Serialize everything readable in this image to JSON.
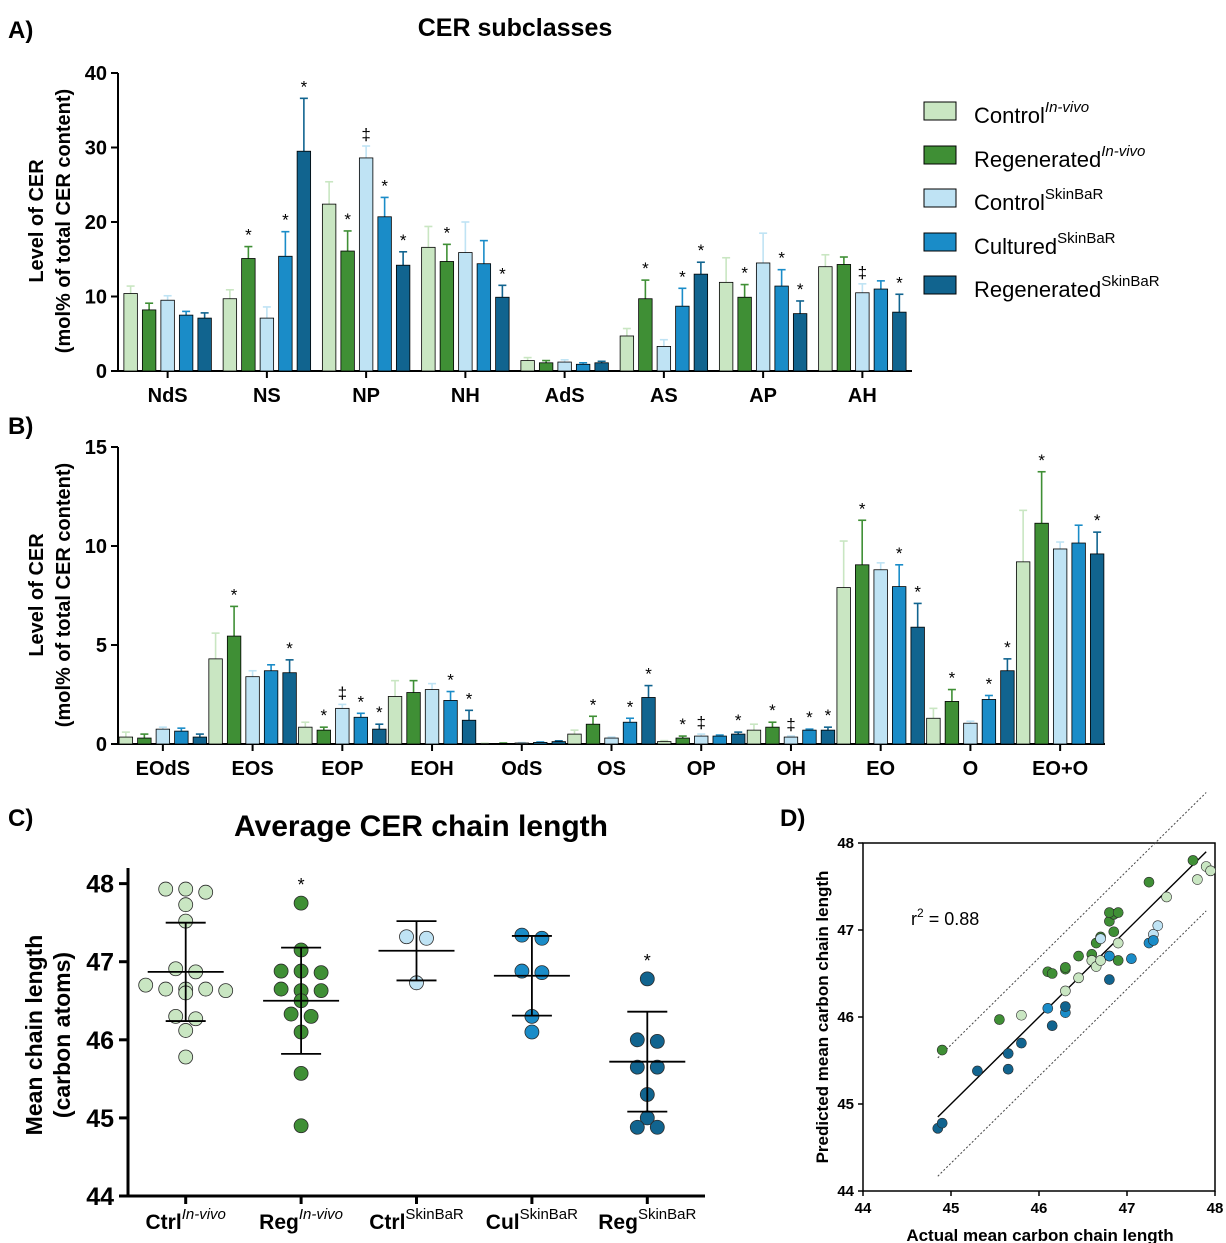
{
  "colors": {
    "control_invivo": "#c9e6c2",
    "regenerated_invivo": "#3f8f35",
    "control_skinbar": "#bfe3f4",
    "cultured_skinbar": "#1a8cc8",
    "regenerated_skinbar": "#11648f",
    "axis": "#000000"
  },
  "legend": [
    {
      "base": "Control",
      "sup": "In-vivo",
      "sup_italic": true,
      "color_key": "control_invivo"
    },
    {
      "base": "Regenerated",
      "sup": "In-vivo",
      "sup_italic": true,
      "color_key": "regenerated_invivo"
    },
    {
      "base": "Control",
      "sup": "SkinBaR",
      "sup_italic": false,
      "color_key": "control_skinbar"
    },
    {
      "base": "Cultured",
      "sup": "SkinBaR",
      "sup_italic": false,
      "color_key": "cultured_skinbar"
    },
    {
      "base": "Regenerated",
      "sup": "SkinBaR",
      "sup_italic": false,
      "color_key": "regenerated_skinbar"
    }
  ],
  "chart_data": [
    {
      "panel": "A)",
      "type": "bar",
      "title": "CER subclasses",
      "ylabel_line1": "Level of CER",
      "ylabel_line2": "(mol% of total CER content)",
      "ylim": [
        0,
        40
      ],
      "yticks": [
        0,
        10,
        20,
        30,
        40
      ],
      "categories": [
        "NdS",
        "NS",
        "NP",
        "NH",
        "AdS",
        "AS",
        "AP",
        "AH"
      ],
      "series": [
        {
          "color_key": "control_invivo",
          "values": [
            10.4,
            9.7,
            22.4,
            16.6,
            1.4,
            4.7,
            11.9,
            14.0
          ],
          "errors": [
            1.0,
            1.2,
            3.0,
            2.8,
            0.4,
            1.0,
            3.3,
            1.6
          ],
          "marks": [
            "",
            "",
            "",
            "",
            "",
            "",
            "",
            ""
          ]
        },
        {
          "color_key": "regenerated_invivo",
          "values": [
            8.2,
            15.1,
            16.1,
            14.7,
            1.1,
            9.7,
            9.9,
            14.3
          ],
          "errors": [
            0.9,
            1.6,
            2.7,
            2.3,
            0.3,
            2.5,
            1.7,
            1.0
          ],
          "marks": [
            "",
            "*",
            "*",
            "*",
            "",
            "*",
            "*",
            ""
          ]
        },
        {
          "color_key": "control_skinbar",
          "values": [
            9.5,
            7.1,
            28.6,
            15.9,
            1.2,
            3.3,
            14.5,
            10.5
          ],
          "errors": [
            0.6,
            1.5,
            1.6,
            4.1,
            0.3,
            0.9,
            4.0,
            1.2
          ],
          "marks": [
            "",
            "",
            "‡",
            "",
            "",
            "",
            "",
            "‡"
          ]
        },
        {
          "color_key": "cultured_skinbar",
          "values": [
            7.5,
            15.4,
            20.7,
            14.4,
            0.9,
            8.7,
            11.4,
            11.0
          ],
          "errors": [
            0.5,
            3.3,
            2.6,
            3.1,
            0.2,
            2.4,
            2.2,
            1.1
          ],
          "marks": [
            "",
            "*",
            "*",
            "",
            "",
            "*",
            "*",
            ""
          ]
        },
        {
          "color_key": "regenerated_skinbar",
          "values": [
            7.1,
            29.5,
            14.2,
            9.9,
            1.1,
            13.0,
            7.7,
            7.9
          ],
          "errors": [
            0.7,
            7.1,
            1.8,
            1.6,
            0.2,
            1.6,
            1.7,
            2.4
          ],
          "marks": [
            "",
            "*",
            "*",
            "*",
            "",
            "*",
            "*",
            "*"
          ]
        }
      ]
    },
    {
      "panel": "B)",
      "type": "bar",
      "title": "",
      "ylabel_line1": "Level of CER",
      "ylabel_line2": "(mol% of total CER content)",
      "ylim": [
        0,
        15
      ],
      "yticks": [
        0,
        5,
        10,
        15
      ],
      "categories": [
        "EOdS",
        "EOS",
        "EOP",
        "EOH",
        "OdS",
        "OS",
        "OP",
        "OH",
        "EO",
        "O",
        "EO+O"
      ],
      "series": [
        {
          "color_key": "control_invivo",
          "values": [
            0.35,
            4.3,
            0.85,
            2.4,
            0.02,
            0.5,
            0.12,
            0.7,
            7.9,
            1.3,
            9.2
          ],
          "errors": [
            0.25,
            1.3,
            0.25,
            0.8,
            0.02,
            0.2,
            0.05,
            0.3,
            2.35,
            0.5,
            2.6
          ],
          "marks": [
            "",
            "",
            "",
            "",
            "",
            "",
            "",
            "",
            "",
            "",
            ""
          ]
        },
        {
          "color_key": "regenerated_invivo",
          "values": [
            0.3,
            5.45,
            0.7,
            2.6,
            0.03,
            1.0,
            0.3,
            0.85,
            9.05,
            2.15,
            11.15
          ],
          "errors": [
            0.2,
            1.5,
            0.15,
            0.6,
            0.02,
            0.4,
            0.1,
            0.25,
            2.25,
            0.6,
            2.6
          ],
          "marks": [
            "",
            "*",
            "*",
            "",
            "",
            "*",
            "*",
            "*",
            "*",
            "*",
            "*"
          ]
        },
        {
          "color_key": "control_skinbar",
          "values": [
            0.75,
            3.4,
            1.8,
            2.75,
            0.05,
            0.3,
            0.4,
            0.35,
            8.8,
            1.05,
            9.85
          ],
          "errors": [
            0.1,
            0.3,
            0.2,
            0.3,
            0.02,
            0.05,
            0.1,
            0.05,
            0.35,
            0.1,
            0.35
          ],
          "marks": [
            "",
            "",
            "‡",
            "",
            "",
            "",
            "‡",
            "‡",
            "",
            "",
            ""
          ]
        },
        {
          "color_key": "cultured_skinbar",
          "values": [
            0.65,
            3.7,
            1.35,
            2.2,
            0.08,
            1.1,
            0.4,
            0.7,
            7.95,
            2.25,
            10.15
          ],
          "errors": [
            0.15,
            0.3,
            0.2,
            0.45,
            0.02,
            0.2,
            0.05,
            0.05,
            1.1,
            0.2,
            0.9
          ],
          "marks": [
            "",
            "",
            "*",
            "*",
            "",
            "*",
            "",
            "*",
            "*",
            "*",
            ""
          ]
        },
        {
          "color_key": "regenerated_skinbar",
          "values": [
            0.35,
            3.6,
            0.75,
            1.2,
            0.12,
            2.35,
            0.5,
            0.7,
            5.9,
            3.7,
            9.6
          ],
          "errors": [
            0.15,
            0.65,
            0.25,
            0.5,
            0.04,
            0.6,
            0.1,
            0.15,
            1.2,
            0.6,
            1.1
          ],
          "marks": [
            "",
            "*",
            "*",
            "*",
            "",
            "*",
            "*",
            "*",
            "*",
            "*",
            "*"
          ]
        }
      ]
    },
    {
      "panel": "C)",
      "type": "scatter",
      "title": "Average  CER chain length",
      "ylabel_line1": "Mean chain length",
      "ylabel_line2": "(carbon atoms)",
      "ylim": [
        44,
        48.2
      ],
      "yticks": [
        44,
        45,
        46,
        47,
        48
      ],
      "groups": [
        {
          "label": "Ctrl",
          "sup": "In-vivo",
          "sup_italic": true,
          "color_key": "control_invivo",
          "mean": 46.87,
          "sd_low": 46.24,
          "sd_high": 47.5,
          "mark": "",
          "points": [
            47.93,
            47.93,
            47.89,
            47.73,
            47.52,
            46.91,
            46.87,
            46.7,
            46.65,
            46.65,
            46.65,
            46.63,
            46.6,
            46.3,
            46.27,
            46.12,
            45.78
          ]
        },
        {
          "label": "Reg",
          "sup": "In-vivo",
          "sup_italic": true,
          "color_key": "regenerated_invivo",
          "mean": 46.5,
          "sd_low": 45.82,
          "sd_high": 47.18,
          "mark": "*",
          "points": [
            47.75,
            47.15,
            46.88,
            46.88,
            46.86,
            46.65,
            46.63,
            46.63,
            46.5,
            46.33,
            46.3,
            46.1,
            45.57,
            44.9
          ]
        },
        {
          "label": "Ctrl",
          "sup": "SkinBaR",
          "sup_italic": false,
          "color_key": "control_skinbar",
          "mean": 47.14,
          "sd_low": 46.76,
          "sd_high": 47.52,
          "mark": "",
          "points": [
            47.3,
            47.32,
            46.73
          ]
        },
        {
          "label": "Cul",
          "sup": "SkinBaR",
          "sup_italic": false,
          "color_key": "cultured_skinbar",
          "mean": 46.82,
          "sd_low": 46.31,
          "sd_high": 47.33,
          "mark": "",
          "points": [
            47.3,
            47.34,
            46.88,
            46.86,
            46.3,
            46.1
          ]
        },
        {
          "label": "Reg",
          "sup": "SkinBaR",
          "sup_italic": false,
          "color_key": "regenerated_skinbar",
          "mean": 45.72,
          "sd_low": 45.08,
          "sd_high": 46.36,
          "mark": "*",
          "points": [
            46.78,
            46.0,
            45.98,
            45.65,
            45.65,
            45.3,
            45.0,
            44.88,
            44.88
          ]
        }
      ]
    },
    {
      "panel": "D)",
      "type": "scatter",
      "xlabel": "Actual mean carbon chain length",
      "ylabel": "Predicted mean carbon chain length",
      "annotation_base": "r",
      "annotation_sup": "2",
      "annotation_value": " = 0.88",
      "xlim": [
        44,
        48
      ],
      "ylim": [
        44,
        48
      ],
      "ticks": [
        44,
        45,
        46,
        47,
        48
      ],
      "fit": {
        "slope": 1.0,
        "intercept": 0.0,
        "x_range": [
          44.85,
          47.9
        ],
        "band": 0.68
      },
      "series": [
        {
          "color_key": "regenerated_invivo",
          "points": [
            [
              44.9,
              45.62
            ],
            [
              45.55,
              45.97
            ],
            [
              46.1,
              46.52
            ],
            [
              46.15,
              46.5
            ],
            [
              46.3,
              46.55
            ],
            [
              46.3,
              46.57
            ],
            [
              46.45,
              46.7
            ],
            [
              46.6,
              46.72
            ],
            [
              46.65,
              46.85
            ],
            [
              46.7,
              46.92
            ],
            [
              46.8,
              47.1
            ],
            [
              46.85,
              47.18
            ],
            [
              46.8,
              47.2
            ],
            [
              46.9,
              47.2
            ],
            [
              46.85,
              46.98
            ],
            [
              47.25,
              47.55
            ],
            [
              47.75,
              47.8
            ],
            [
              46.9,
              46.65
            ]
          ]
        },
        {
          "color_key": "control_invivo",
          "points": [
            [
              45.8,
              46.02
            ],
            [
              46.3,
              46.3
            ],
            [
              46.45,
              46.45
            ],
            [
              46.6,
              46.65
            ],
            [
              46.65,
              46.58
            ],
            [
              46.7,
              46.65
            ],
            [
              46.9,
              46.85
            ],
            [
              47.45,
              47.38
            ],
            [
              47.8,
              47.58
            ],
            [
              47.9,
              47.73
            ],
            [
              47.95,
              47.68
            ],
            [
              46.8,
              46.7
            ]
          ]
        },
        {
          "color_key": "control_skinbar",
          "points": [
            [
              46.7,
              46.9
            ],
            [
              47.3,
              46.95
            ],
            [
              47.35,
              47.05
            ]
          ]
        },
        {
          "color_key": "cultured_skinbar",
          "points": [
            [
              46.1,
              46.1
            ],
            [
              46.3,
              46.05
            ],
            [
              46.8,
              46.7
            ],
            [
              47.05,
              46.67
            ],
            [
              47.25,
              46.85
            ],
            [
              47.3,
              46.88
            ]
          ]
        },
        {
          "color_key": "regenerated_skinbar",
          "points": [
            [
              44.85,
              44.72
            ],
            [
              44.9,
              44.78
            ],
            [
              45.3,
              45.38
            ],
            [
              45.65,
              45.58
            ],
            [
              45.65,
              45.4
            ],
            [
              45.8,
              45.7
            ],
            [
              46.15,
              45.9
            ],
            [
              46.3,
              46.12
            ],
            [
              46.8,
              46.43
            ]
          ]
        }
      ]
    }
  ]
}
